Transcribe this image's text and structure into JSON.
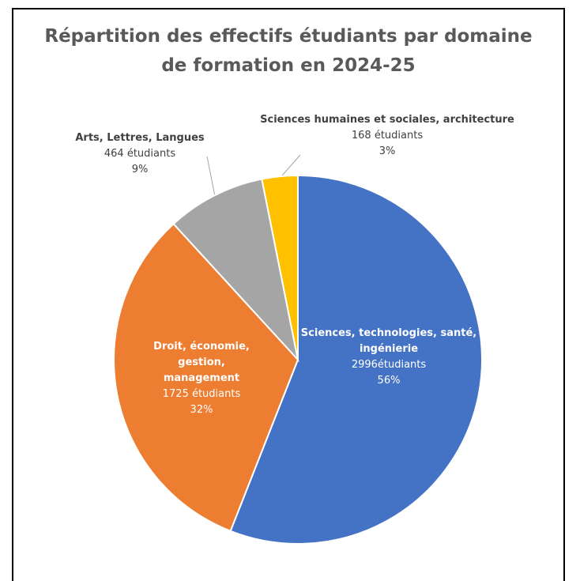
{
  "chart_data": {
    "type": "pie",
    "title": "Répartition des effectifs étudiants par domaine de formation en 2024-25",
    "categories": [
      "Sciences, technologies, santé, ingénierie",
      "Droit, économie, gestion, management",
      "Arts, Lettres, Langues",
      "Sciences humaines et sociales, architecture"
    ],
    "values": [
      2996,
      1725,
      464,
      168
    ],
    "value_labels": [
      "2996étudiants",
      "1725 étudiants",
      "464 étudiants",
      "168 étudiants"
    ],
    "percent_labels": [
      "56%",
      "32%",
      "9%",
      "3%"
    ],
    "colors": [
      "#4472c4",
      "#ed7d31",
      "#a5a5a5",
      "#ffc000"
    ]
  }
}
